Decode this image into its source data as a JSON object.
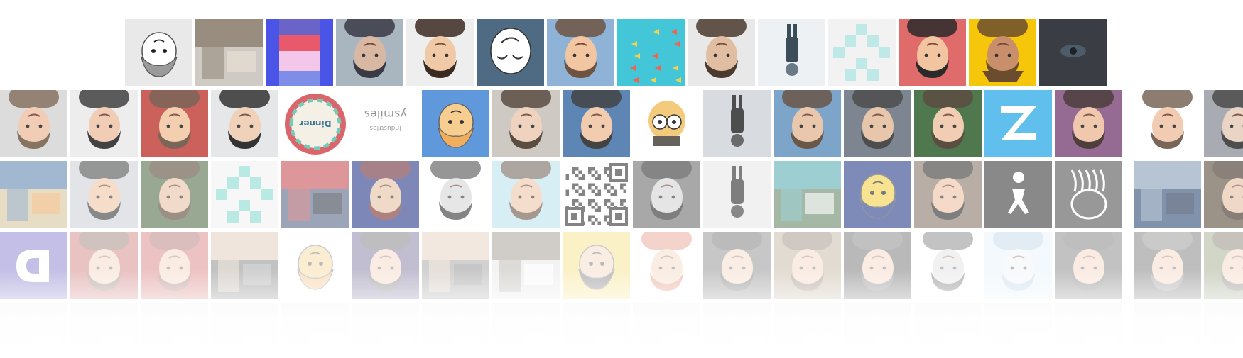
{
  "gallery": {
    "rows": [
      {
        "opacity": 1,
        "tiles": [
          {
            "kind": "cartoon-person",
            "bg": "#e9e9e9",
            "skin": "#ffffff",
            "hair": "#9a9a9a"
          },
          {
            "kind": "photo",
            "bg": "#cfcac4",
            "c1": "#8b7d6e",
            "c2": "#e7e0d6"
          },
          {
            "kind": "pixel-block",
            "bg": "#4a55e8",
            "c1": "#f2c7ea",
            "c2": "#e85a6b"
          },
          {
            "kind": "face",
            "bg": "#a9b6c0",
            "skin": "#d8b7a3",
            "hair": "#3a3a44"
          },
          {
            "kind": "face",
            "bg": "#eeeeee",
            "skin": "#f0c9a7",
            "hair": "#3b2a22"
          },
          {
            "kind": "meme-face",
            "bg": "#4f6a83",
            "skin": "#ffffff",
            "hair": "#333333"
          },
          {
            "kind": "face",
            "bg": "#8fb3d6",
            "skin": "#f2c6a0",
            "hair": "#6d5441"
          },
          {
            "kind": "pattern",
            "bg": "#43c6d7",
            "c1": "#f1634d",
            "c2": "#f4d24f"
          },
          {
            "kind": "face",
            "bg": "#e8e8e8",
            "skin": "#e1bda2",
            "hair": "#4b3a2e"
          },
          {
            "kind": "figure",
            "bg": "#eef1f4",
            "skin": "#6a7a86",
            "hair": "#3c4d5a"
          },
          {
            "kind": "identicon",
            "bg": "#f2f2f2",
            "c1": "#bfe9e6"
          },
          {
            "kind": "face",
            "bg": "#e06b6b",
            "skin": "#f2c4a0",
            "hair": "#2a2a2a"
          },
          {
            "kind": "hat-face",
            "bg": "#f5c60a",
            "skin": "#c88f6a",
            "hair": "#6b4c2e"
          },
          {
            "kind": "dark-eye",
            "bg": "#3a3e44",
            "c1": "#5a7284"
          }
        ]
      },
      {
        "opacity": 0.9,
        "tiles": [
          {
            "kind": "face",
            "bg": "#d9d9d9",
            "skin": "#f0c8ae",
            "hair": "#7a6452"
          },
          {
            "kind": "face",
            "bg": "#ececec",
            "skin": "#f0c8ae",
            "hair": "#2e2e2e"
          },
          {
            "kind": "face",
            "bg": "#c7504a",
            "skin": "#f2caa8",
            "hair": "#6b5646"
          },
          {
            "kind": "face",
            "bg": "#e3e5e7",
            "skin": "#efcdb3",
            "hair": "#1d1d1d"
          },
          {
            "kind": "chip-logo",
            "bg": "#ffffff",
            "c1": "#d7565b",
            "c2": "#63c7b2"
          },
          {
            "kind": "wordmark",
            "bg": "#ffffff",
            "c1": "#8e8e8e"
          },
          {
            "kind": "cartoon-person",
            "bg": "#4e8fd8",
            "skin": "#f7c985",
            "hair": "#f0a64c"
          },
          {
            "kind": "face",
            "bg": "#c9c4bd",
            "skin": "#eecfb7",
            "hair": "#4a3a2e"
          },
          {
            "kind": "face",
            "bg": "#4c79ac",
            "skin": "#f0c7a6",
            "hair": "#2f2f2f"
          },
          {
            "kind": "cartoon-eyes",
            "bg": "#ffffff",
            "skin": "#f3c66e",
            "hair": "#57504a"
          },
          {
            "kind": "figure",
            "bg": "#d4d8dc",
            "skin": "#5a5a5a",
            "hair": "#3a3a3a"
          },
          {
            "kind": "face",
            "bg": "#6f9bc4",
            "skin": "#e7c2a5",
            "hair": "#5a4535"
          },
          {
            "kind": "face",
            "bg": "#6f7a85",
            "skin": "#e6c0a3",
            "hair": "#3a3a3a"
          },
          {
            "kind": "face",
            "bg": "#3d6a3d",
            "skin": "#efc8ab",
            "hair": "#4b3a2e"
          },
          {
            "kind": "z-logo",
            "bg": "#4fb9ea",
            "c1": "#ffffff"
          },
          {
            "kind": "face",
            "bg": "#8a5a88",
            "skin": "#efc3a6",
            "hair": "#3b2a28"
          },
          {
            "kind": "face",
            "bg": "#ffffff",
            "skin": "#f0c7aa",
            "hair": "#6b5646"
          },
          {
            "kind": "face",
            "bg": "#9fa4aa",
            "skin": "#e8d0bd",
            "hair": "#3a3a3a"
          }
        ]
      },
      {
        "opacity": 0.6,
        "tiles": [
          {
            "kind": "photo",
            "bg": "#d8c8a0",
            "c1": "#4a7ab8",
            "c2": "#f0a55a"
          },
          {
            "kind": "face",
            "bg": "#cfd3d8",
            "skin": "#f0c7a6",
            "hair": "#3a3a3a"
          },
          {
            "kind": "face",
            "bg": "#556f4a",
            "skin": "#e8c3a7",
            "hair": "#5b4636"
          },
          {
            "kind": "identicon",
            "bg": "#f2f2f2",
            "c1": "#89dcd2"
          },
          {
            "kind": "photo",
            "bg": "#5a6b88",
            "c1": "#e24c4c",
            "c2": "#2a2d38"
          },
          {
            "kind": "face",
            "bg": "#2a3a8a",
            "skin": "#e6c0a3",
            "hair": "#7a2e2e"
          },
          {
            "kind": "face",
            "bg": "#ffffff",
            "skin": "#d6d6d6",
            "hair": "#333333"
          },
          {
            "kind": "face",
            "bg": "#bfe3ef",
            "skin": "#f0c7aa",
            "hair": "#6b5646"
          },
          {
            "kind": "qr",
            "bg": "#ffffff",
            "c1": "#333333"
          },
          {
            "kind": "face",
            "bg": "#707070",
            "skin": "#d4d4d4",
            "hair": "#2a2a2a"
          },
          {
            "kind": "figure",
            "bg": "#e9e9e9",
            "skin": "#3a3a3a",
            "hair": "#2a2a2a"
          },
          {
            "kind": "photo",
            "bg": "#6a8a6a",
            "c1": "#5ab8c8",
            "c2": "#f0f0f0"
          },
          {
            "kind": "cartoon-person",
            "bg": "#2a3f8a",
            "skin": "#f2d24a",
            "hair": "#2a3f8a"
          },
          {
            "kind": "face",
            "bg": "#8a7a6a",
            "skin": "#efc3a6",
            "hair": "#2a2a2a"
          },
          {
            "kind": "stick-logo",
            "bg": "#3b3b3b",
            "c1": "#ffffff"
          },
          {
            "kind": "octopus",
            "bg": "#555555",
            "c1": "#ffffff"
          },
          {
            "kind": "photo",
            "bg": "#2e4a78",
            "c1": "#9fb3c8",
            "c2": "#1c2a44"
          },
          {
            "kind": "face",
            "bg": "#5a4a3a",
            "skin": "#e6bfa0",
            "hair": "#3a2a20"
          }
        ]
      },
      {
        "opacity": 0.3,
        "tiles": [
          {
            "kind": "d-logo",
            "bg": "#3b2fb0",
            "c1": "#ffffff"
          },
          {
            "kind": "face",
            "bg": "#b73a3a",
            "skin": "#efc3a6",
            "hair": "#5a3a2a"
          },
          {
            "kind": "face",
            "bg": "#c63a3a",
            "skin": "#efc3a6",
            "hair": "#7a2a2a"
          },
          {
            "kind": "photo",
            "bg": "#3a3a3a",
            "c1": "#f0c7a6",
            "c2": "#7a7a7a"
          },
          {
            "kind": "cartoon-person",
            "bg": "#ffffff",
            "skin": "#f3c66e",
            "hair": "#f0a64c"
          },
          {
            "kind": "face",
            "bg": "#3a2a6a",
            "skin": "#efc3a6",
            "hair": "#2a2a2a"
          },
          {
            "kind": "photo",
            "bg": "#6a6a6a",
            "c1": "#f0c7a6",
            "c2": "#3a3a3a"
          },
          {
            "kind": "photo",
            "bg": "#d8d8d8",
            "c1": "#4a3a2a",
            "c2": "#ffffff"
          },
          {
            "kind": "cartoon-person",
            "bg": "#f2d24a",
            "skin": "#f0c7a6",
            "hair": "#2a2a2a"
          },
          {
            "kind": "face",
            "bg": "#ffffff",
            "skin": "#f0c7a6",
            "hair": "#d4583a"
          },
          {
            "kind": "face",
            "bg": "#4a4a4a",
            "skin": "#f0c7a6",
            "hair": "#1a1a1a"
          },
          {
            "kind": "face",
            "bg": "#a08a6a",
            "skin": "#efc3a6",
            "hair": "#5a4030"
          },
          {
            "kind": "face",
            "bg": "#1a1a1a",
            "skin": "#efc3a6",
            "hair": "#3a3a3a"
          },
          {
            "kind": "face",
            "bg": "#ffffff",
            "skin": "#d4d4d4",
            "hair": "#1a1a1a"
          },
          {
            "kind": "face",
            "bg": "#d8eef8",
            "skin": "#e8eef4",
            "hair": "#9ab8d8"
          },
          {
            "kind": "face",
            "bg": "#3a3a3a",
            "skin": "#efc3a6",
            "hair": "#2a2a2a"
          },
          {
            "kind": "face",
            "bg": "#2a2a2a",
            "skin": "#efc3a6",
            "hair": "#5a5a5a"
          },
          {
            "kind": "face",
            "bg": "#6a7a4a",
            "skin": "#efc3a6",
            "hair": "#3a3020"
          }
        ]
      },
      {
        "opacity": 0.1,
        "tiles": [
          {
            "kind": "photo",
            "bg": "#cccccc",
            "c1": "#aaaaaa",
            "c2": "#eeeeee"
          },
          {
            "kind": "photo",
            "bg": "#cfcfcf",
            "c1": "#aaaaaa",
            "c2": "#eeeeee"
          },
          {
            "kind": "photo",
            "bg": "#d8c0c0",
            "c1": "#aaaaaa",
            "c2": "#eeeeee"
          },
          {
            "kind": "photo",
            "bg": "#cccccc",
            "c1": "#aaaaaa",
            "c2": "#eeeeee"
          },
          {
            "kind": "photo",
            "bg": "#dddddd",
            "c1": "#aaaaaa",
            "c2": "#eeeeee"
          },
          {
            "kind": "photo",
            "bg": "#cccccc",
            "c1": "#aaaaaa",
            "c2": "#eeeeee"
          },
          {
            "kind": "photo",
            "bg": "#c8c8c8",
            "c1": "#aaaaaa",
            "c2": "#eeeeee"
          },
          {
            "kind": "photo",
            "bg": "#d4d4d4",
            "c1": "#aaaaaa",
            "c2": "#eeeeee"
          },
          {
            "kind": "photo",
            "bg": "#cccccc",
            "c1": "#aaaaaa",
            "c2": "#eeeeee"
          },
          {
            "kind": "photo",
            "bg": "#d0d0d0",
            "c1": "#aaaaaa",
            "c2": "#eeeeee"
          },
          {
            "kind": "photo",
            "bg": "#cccccc",
            "c1": "#aaaaaa",
            "c2": "#eeeeee"
          },
          {
            "kind": "photo",
            "bg": "#d0d0d0",
            "c1": "#aaaaaa",
            "c2": "#eeeeee"
          },
          {
            "kind": "photo",
            "bg": "#cccccc",
            "c1": "#aaaaaa",
            "c2": "#eeeeee"
          },
          {
            "kind": "photo",
            "bg": "#d4d4d4",
            "c1": "#aaaaaa",
            "c2": "#eeeeee"
          },
          {
            "kind": "photo",
            "bg": "#dddddd",
            "c1": "#aaaaaa",
            "c2": "#eeeeee"
          },
          {
            "kind": "photo",
            "bg": "#cccccc",
            "c1": "#aaaaaa",
            "c2": "#eeeeee"
          },
          {
            "kind": "photo",
            "bg": "#e4b0b0",
            "c1": "#aaaaaa",
            "c2": "#eeeeee"
          },
          {
            "kind": "photo",
            "bg": "#cccccc",
            "c1": "#aaaaaa",
            "c2": "#eeeeee"
          }
        ]
      }
    ],
    "texts": {
      "chip_label": "Dinner",
      "wordmark_main": "ysmiles",
      "wordmark_small": "industries"
    }
  }
}
